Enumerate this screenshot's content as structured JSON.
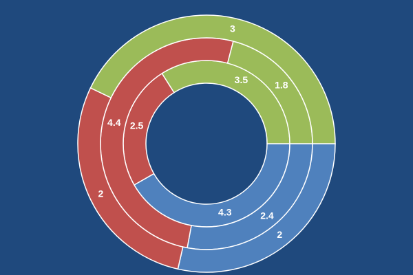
{
  "chart_data": {
    "type": "doughnut",
    "colors": [
      "#4f81bd",
      "#c0504d",
      "#9bbb59"
    ],
    "background": "#1f497d",
    "start_angle": 90,
    "series": [
      {
        "values": [
          4.3,
          2.5,
          3.5
        ]
      },
      {
        "values": [
          2.4,
          4.4,
          1.8
        ]
      },
      {
        "values": [
          2,
          2,
          3
        ]
      }
    ]
  }
}
